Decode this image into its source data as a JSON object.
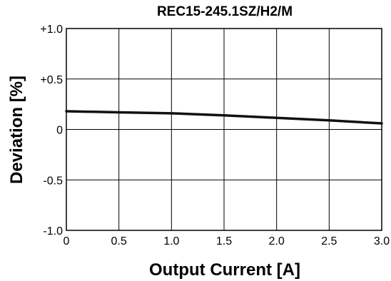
{
  "chart_data": {
    "type": "line",
    "title": "REC15-245.1SZ/H2/M",
    "xlabel": "Output Current [A]",
    "ylabel": "Deviation [%]",
    "xlim": [
      0,
      3.0
    ],
    "ylim": [
      -1.0,
      1.0
    ],
    "x_ticks": [
      0,
      0.5,
      1.0,
      1.5,
      2.0,
      2.5,
      3.0
    ],
    "x_tick_labels": [
      "0",
      "0.5",
      "1.0",
      "1.5",
      "2.0",
      "2.5",
      "3.0"
    ],
    "y_ticks": [
      1.0,
      0.5,
      0,
      -0.5,
      -1.0
    ],
    "y_tick_labels": [
      "+1.0",
      "+0.5",
      "0",
      "-0.5",
      "-1.0"
    ],
    "grid": true,
    "series": [
      {
        "color": "#111111",
        "x": [
          0,
          0.5,
          1.0,
          1.5,
          2.0,
          2.5,
          3.0
        ],
        "y": [
          0.18,
          0.17,
          0.16,
          0.14,
          0.115,
          0.09,
          0.06
        ]
      }
    ]
  }
}
